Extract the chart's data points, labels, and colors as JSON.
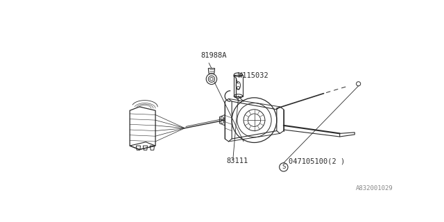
{
  "bg_color": "#ffffff",
  "line_color": "#2a2a2a",
  "text_color": "#2a2a2a",
  "diagram_id": "A832001029",
  "label_81988A": "81988A",
  "label_W115032": "W115032",
  "label_83111": "83111",
  "label_S_num": "047105100(2 )",
  "figsize": [
    6.4,
    3.2
  ],
  "dpi": 100
}
